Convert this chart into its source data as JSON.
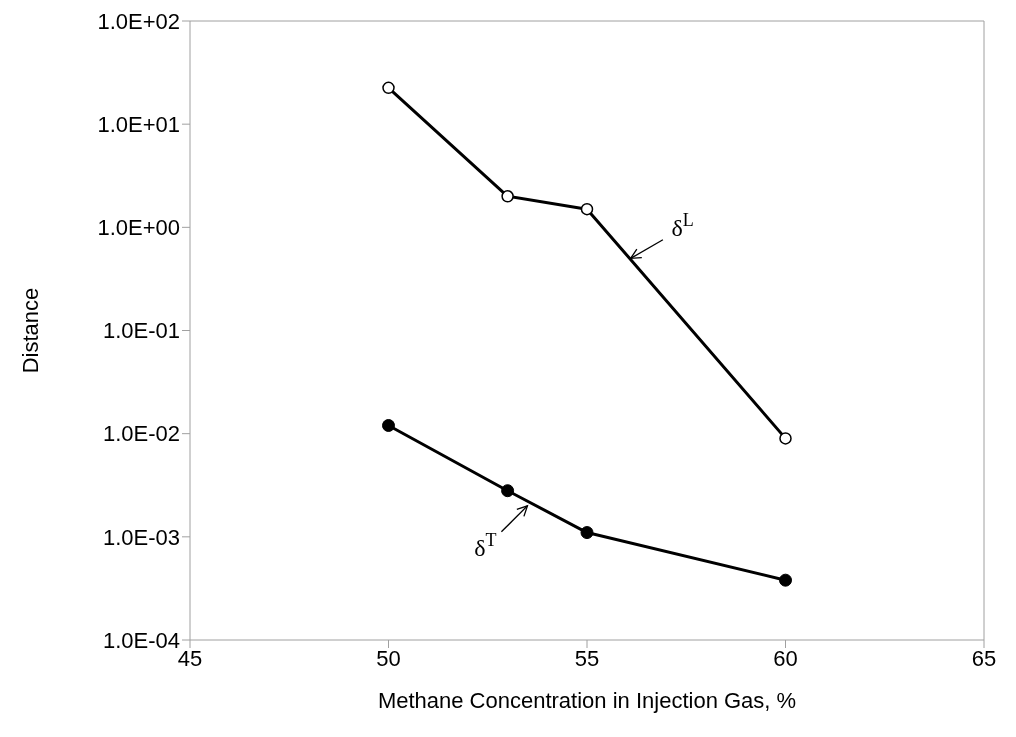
{
  "chart_data": {
    "type": "line",
    "xlabel": "Methane Concentration in Injection Gas, %",
    "ylabel": "Distance",
    "x": [
      50,
      53,
      55,
      60
    ],
    "series": [
      {
        "color": "#000000",
        "marker": "circle-open",
        "values": [
          22.5,
          2,
          1.5,
          0.009
        ]
      },
      {
        "color": "#000000",
        "marker": "circle",
        "values": [
          0.012,
          0.0028,
          0.0011,
          0.00038
        ]
      }
    ],
    "log": "y",
    "xlim": [
      45,
      65
    ],
    "xticks": [
      45,
      50,
      55,
      60,
      65
    ],
    "ylim": [
      0.0001,
      100
    ],
    "yticks": [
      {
        "value": 0.0001,
        "label": "1.0E-04"
      },
      {
        "value": 0.001,
        "label": "1.0E-03"
      },
      {
        "value": 0.01,
        "label": "1.0E-02"
      },
      {
        "value": 0.1,
        "label": "1.0E-01"
      },
      {
        "value": 1,
        "label": "1.0E+00"
      },
      {
        "value": 10,
        "label": "1.0E+01"
      },
      {
        "value": 100,
        "label": "1.0E+02"
      }
    ],
    "annotations": [
      {
        "text": "δ$^{L}$",
        "x": 56.1,
        "y": 0.5
      },
      {
        "text": "δ$^{T}$",
        "x": 53.5,
        "y": 0.002
      }
    ]
  }
}
